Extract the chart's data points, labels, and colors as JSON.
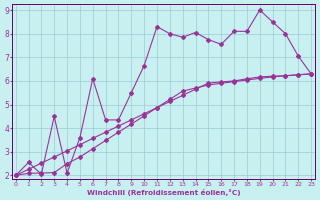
{
  "xlabel": "Windchill (Refroidissement éolien,°C)",
  "bg_color": "#c8f0f0",
  "grid_color": "#99ccd4",
  "line_color": "#993399",
  "spine_color": "#660066",
  "xlim": [
    -0.3,
    23.3
  ],
  "ylim": [
    1.85,
    9.25
  ],
  "xticks": [
    0,
    1,
    2,
    3,
    4,
    5,
    6,
    7,
    8,
    9,
    10,
    11,
    12,
    13,
    14,
    15,
    16,
    17,
    18,
    19,
    20,
    21,
    22,
    23
  ],
  "yticks": [
    2,
    3,
    4,
    5,
    6,
    7,
    8,
    9
  ],
  "line1_x": [
    0,
    1,
    2,
    3,
    4,
    5,
    6,
    7,
    8,
    9,
    10,
    11,
    12,
    13,
    14,
    15,
    16,
    17,
    18,
    19,
    20,
    21,
    22,
    23
  ],
  "line1_y": [
    2.0,
    2.55,
    2.05,
    4.5,
    2.1,
    3.6,
    6.1,
    4.35,
    4.35,
    5.5,
    6.65,
    8.3,
    8.0,
    7.85,
    8.05,
    7.75,
    7.55,
    8.1,
    8.1,
    9.0,
    8.5,
    8.0,
    7.05,
    6.3
  ],
  "line2_x": [
    0,
    1,
    2,
    3,
    4,
    5,
    6,
    7,
    8,
    9,
    10,
    11,
    12,
    13,
    14,
    15,
    16,
    17,
    18,
    19,
    20,
    21,
    22,
    23
  ],
  "line2_y": [
    2.0,
    2.26,
    2.52,
    2.78,
    3.04,
    3.3,
    3.57,
    3.83,
    4.09,
    4.35,
    4.61,
    4.87,
    5.13,
    5.39,
    5.65,
    5.91,
    5.96,
    6.0,
    6.09,
    6.17,
    6.2,
    6.22,
    6.26,
    6.3
  ],
  "line3_x": [
    0,
    1,
    2,
    3,
    4,
    5,
    6,
    7,
    8,
    9,
    10,
    11,
    12,
    13,
    14,
    15,
    16,
    17,
    18,
    19,
    20,
    21,
    22,
    23
  ],
  "line3_y": [
    2.0,
    2.09,
    2.1,
    2.12,
    2.5,
    2.78,
    3.13,
    3.48,
    3.83,
    4.17,
    4.52,
    4.87,
    5.22,
    5.57,
    5.7,
    5.83,
    5.9,
    5.97,
    6.04,
    6.11,
    6.17,
    6.22,
    6.26,
    6.3
  ]
}
